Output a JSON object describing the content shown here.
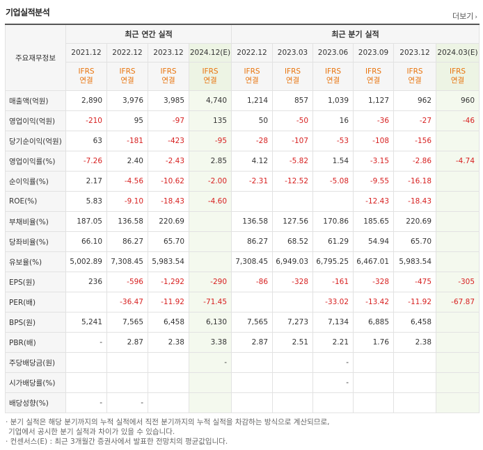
{
  "header": {
    "title": "기업실적분석",
    "more_label": "더보기",
    "more_arrow": "›"
  },
  "table": {
    "row_header": "주요재무정보",
    "group_annual": "최근 연간 실적",
    "group_quarter": "최근 분기 실적",
    "columns": [
      "2021.12",
      "2022.12",
      "2023.12",
      "2024.12(E)",
      "2022.12",
      "2023.03",
      "2023.06",
      "2023.09",
      "2023.12",
      "2024.03(E)"
    ],
    "standard_top": "IFRS",
    "standard_bottom": "연결",
    "rows": [
      {
        "label": "매출액(억원)",
        "values": [
          "2,890",
          "3,976",
          "3,985",
          "4,740",
          "1,214",
          "857",
          "1,039",
          "1,127",
          "962",
          "960"
        ]
      },
      {
        "label": "영업이익(억원)",
        "values": [
          "-210",
          "95",
          "-97",
          "135",
          "50",
          "-50",
          "16",
          "-36",
          "-27",
          "-46"
        ]
      },
      {
        "label": "당기순이익(억원)",
        "values": [
          "63",
          "-181",
          "-423",
          "-95",
          "-28",
          "-107",
          "-53",
          "-108",
          "-156",
          ""
        ]
      },
      {
        "label": "영업이익률(%)",
        "values": [
          "-7.26",
          "2.40",
          "-2.43",
          "2.85",
          "4.12",
          "-5.82",
          "1.54",
          "-3.15",
          "-2.86",
          "-4.74"
        ]
      },
      {
        "label": "순이익률(%)",
        "values": [
          "2.17",
          "-4.56",
          "-10.62",
          "-2.00",
          "-2.31",
          "-12.52",
          "-5.08",
          "-9.55",
          "-16.18",
          ""
        ]
      },
      {
        "label": "ROE(%)",
        "values": [
          "5.83",
          "-9.10",
          "-18.43",
          "-4.60",
          "",
          "",
          "",
          "-12.43",
          "-18.43",
          ""
        ]
      },
      {
        "label": "부채비율(%)",
        "values": [
          "187.05",
          "136.58",
          "220.69",
          "",
          "136.58",
          "127.56",
          "170.86",
          "185.65",
          "220.69",
          ""
        ]
      },
      {
        "label": "당좌비율(%)",
        "values": [
          "66.10",
          "86.27",
          "65.70",
          "",
          "86.27",
          "68.52",
          "61.29",
          "54.94",
          "65.70",
          ""
        ]
      },
      {
        "label": "유보율(%)",
        "values": [
          "5,002.89",
          "7,308.45",
          "5,983.54",
          "",
          "7,308.45",
          "6,949.03",
          "6,795.25",
          "6,467.01",
          "5,983.54",
          ""
        ]
      },
      {
        "label": "EPS(원)",
        "values": [
          "236",
          "-596",
          "-1,292",
          "-290",
          "-86",
          "-328",
          "-161",
          "-328",
          "-475",
          "-305"
        ]
      },
      {
        "label": "PER(배)",
        "values": [
          "",
          "-36.47",
          "-11.92",
          "-71.45",
          "",
          "",
          "-33.02",
          "-13.42",
          "-11.92",
          "-67.87"
        ]
      },
      {
        "label": "BPS(원)",
        "values": [
          "5,241",
          "7,565",
          "6,458",
          "6,130",
          "7,565",
          "7,273",
          "7,134",
          "6,885",
          "6,458",
          ""
        ]
      },
      {
        "label": "PBR(배)",
        "values": [
          "-",
          "2.87",
          "2.38",
          "3.38",
          "2.87",
          "2.51",
          "2.21",
          "1.76",
          "2.38",
          ""
        ]
      },
      {
        "label": "주당배당금(원)",
        "values": [
          "",
          "",
          "",
          "-",
          "",
          "",
          "-",
          "",
          "",
          ""
        ]
      },
      {
        "label": "시가배당률(%)",
        "values": [
          "",
          "",
          "",
          "",
          "",
          "",
          "-",
          "",
          "",
          ""
        ]
      },
      {
        "label": "배당성향(%)",
        "values": [
          "-",
          "-",
          "",
          "",
          "",
          "",
          "",
          "",
          "",
          ""
        ]
      }
    ]
  },
  "notes": [
    "· 분기 실적은 해당 분기까지의 누적 실적에서 직전 분기까지의 누적 실적을 차감하는 방식으로 계산되므로,",
    "  기업에서 공시한 분기 실적과 차이가 있을 수 있습니다.",
    "· 컨센서스(E) : 최근 3개월간 증권사에서 발표한 전망치의 평균값입니다."
  ],
  "colors": {
    "negative": "#d72020",
    "ifrs": "#e8730c",
    "estimate_bg": "#f4f9ee"
  }
}
